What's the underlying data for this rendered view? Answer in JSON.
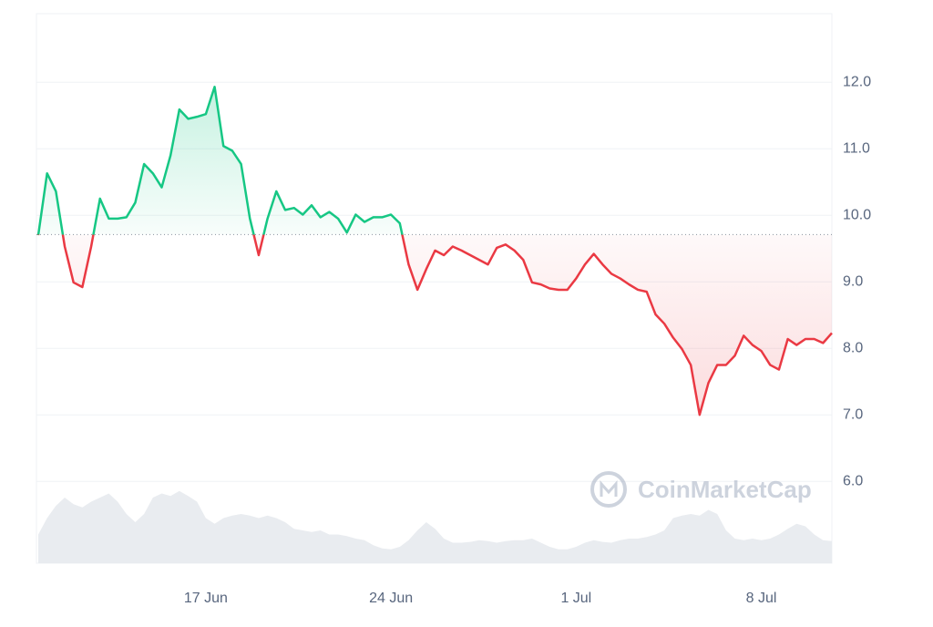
{
  "chart_data": {
    "type": "line",
    "categories": [
      null,
      null,
      null,
      null,
      null,
      null,
      null,
      null,
      null,
      null,
      null,
      null,
      null,
      null,
      null,
      null,
      null,
      null,
      null,
      "17 Jun",
      null,
      null,
      null,
      null,
      null,
      null,
      null,
      null,
      null,
      null,
      null,
      null,
      null,
      null,
      null,
      null,
      null,
      null,
      null,
      null,
      "24 Jun",
      null,
      null,
      null,
      null,
      null,
      null,
      null,
      null,
      null,
      null,
      null,
      null,
      null,
      null,
      null,
      null,
      null,
      null,
      null,
      null,
      "1 Jul",
      null,
      null,
      null,
      null,
      null,
      null,
      null,
      null,
      null,
      null,
      null,
      null,
      null,
      null,
      null,
      null,
      null,
      null,
      null,
      null,
      "8 Jul",
      null,
      null,
      null,
      null,
      null,
      null,
      null,
      null
    ],
    "values": [
      9.7,
      10.63,
      10.36,
      9.53,
      8.99,
      8.92,
      9.53,
      10.25,
      9.95,
      9.95,
      9.97,
      10.19,
      10.77,
      10.63,
      10.42,
      10.9,
      11.59,
      11.45,
      11.48,
      11.52,
      11.93,
      11.04,
      10.97,
      10.77,
      9.95,
      9.4,
      9.95,
      10.36,
      10.08,
      10.11,
      10.01,
      10.15,
      9.97,
      10.05,
      9.95,
      9.74,
      10.01,
      9.9,
      9.97,
      9.97,
      10.01,
      9.88,
      9.26,
      8.88,
      9.19,
      9.47,
      9.4,
      9.53,
      9.47,
      9.4,
      9.33,
      9.26,
      9.51,
      9.56,
      9.47,
      9.33,
      8.99,
      8.96,
      8.9,
      8.88,
      8.88,
      9.05,
      9.26,
      9.42,
      9.26,
      9.12,
      9.05,
      8.96,
      8.88,
      8.85,
      8.51,
      8.37,
      8.16,
      7.99,
      7.75,
      7.0,
      7.48,
      7.75,
      7.75,
      7.89,
      8.19,
      8.05,
      7.96,
      7.75,
      7.68,
      8.14,
      8.05,
      8.14,
      8.14,
      8.08,
      8.23
    ],
    "reference_value": 9.71,
    "up_color": "#16c784",
    "down_color": "#ea3943",
    "volume": {
      "color": "#e9ecf0",
      "lim": [
        0,
        100
      ],
      "values": [
        35,
        55,
        70,
        80,
        72,
        68,
        75,
        80,
        85,
        75,
        60,
        50,
        60,
        80,
        85,
        82,
        88,
        82,
        75,
        55,
        48,
        55,
        58,
        60,
        58,
        55,
        58,
        55,
        50,
        42,
        40,
        38,
        40,
        35,
        35,
        33,
        30,
        28,
        22,
        18,
        17,
        20,
        28,
        40,
        50,
        42,
        30,
        25,
        25,
        26,
        28,
        27,
        25,
        27,
        28,
        28,
        30,
        25,
        20,
        17,
        17,
        20,
        25,
        28,
        26,
        25,
        28,
        30,
        30,
        32,
        35,
        40,
        55,
        58,
        60,
        58,
        65,
        60,
        40,
        30,
        28,
        30,
        28,
        30,
        35,
        42,
        48,
        45,
        35,
        28,
        27
      ]
    },
    "ylim": [
      4.77,
      13.03
    ],
    "yticks": [
      {
        "value": 6,
        "label": "6.0"
      },
      {
        "value": 7,
        "label": "7.0"
      },
      {
        "value": 8,
        "label": "8.0"
      },
      {
        "value": 9,
        "label": "9.0"
      },
      {
        "value": 10,
        "label": "10.0"
      },
      {
        "value": 11,
        "label": "11.0"
      },
      {
        "value": 12,
        "label": "12.0"
      }
    ],
    "grid": true,
    "watermark": "CoinMarketCap"
  }
}
